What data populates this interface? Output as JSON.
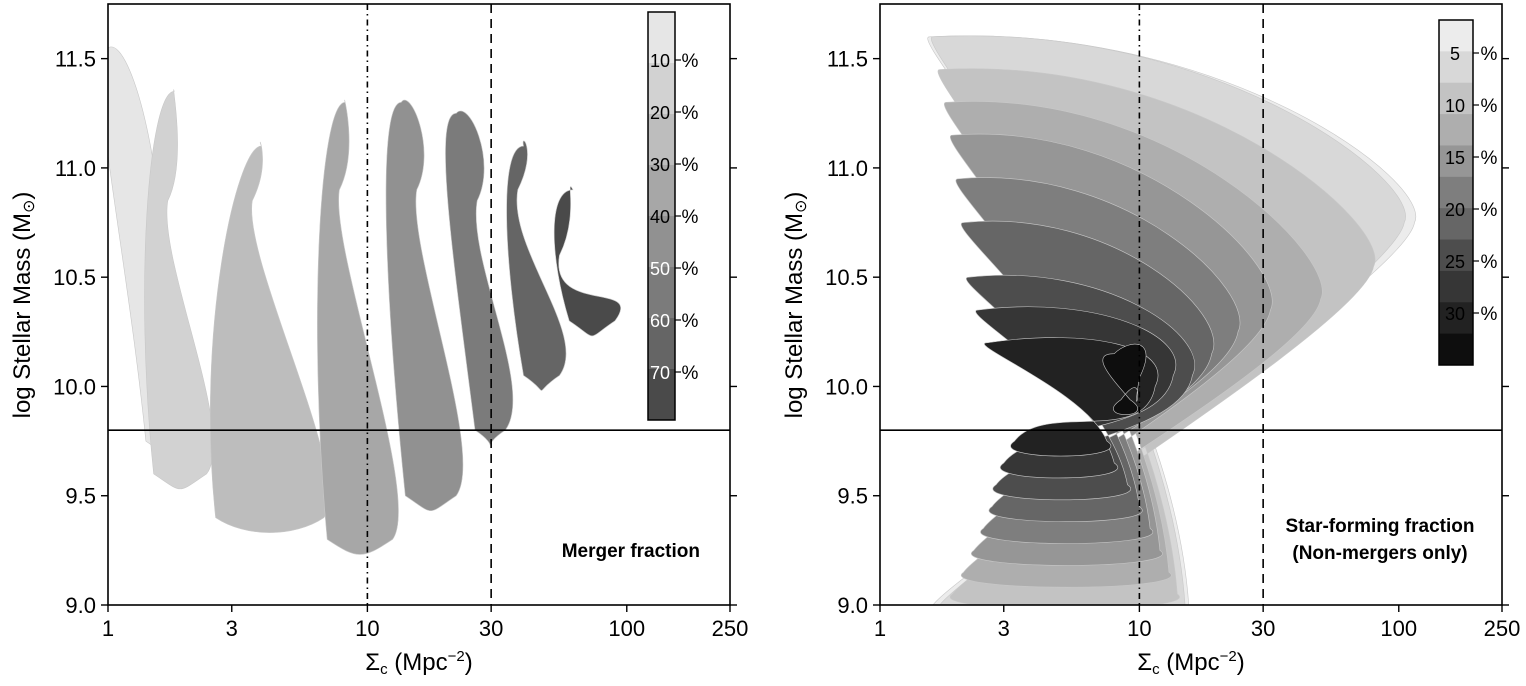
{
  "chart_data": [
    {
      "type": "heatmap",
      "subtype": "filled-contour",
      "annotation": "Merger fraction",
      "xlabel_symbol": "Σ",
      "xlabel_sub": "c",
      "xlabel_unit_open": " (Mpc",
      "xlabel_unit_sup": "−2",
      "xlabel_unit_close": ")",
      "ylabel_main": "log Stellar Mass (M",
      "ylabel_sun": "⊙",
      "ylabel_close": ")",
      "xscale": "log",
      "xlim": [
        1,
        250
      ],
      "ylim": [
        9.0,
        11.75
      ],
      "xticks": [
        1,
        3,
        10,
        30,
        100,
        250
      ],
      "xtick_labels": [
        "1",
        "3",
        "10",
        "30",
        "100",
        "250"
      ],
      "yticks": [
        9.0,
        9.5,
        10.0,
        10.5,
        11.0,
        11.5
      ],
      "ytick_labels": [
        "9.0",
        "9.5",
        "10.0",
        "10.5",
        "11.0",
        "11.5"
      ],
      "reference_lines": [
        {
          "orientation": "vertical",
          "x": 10,
          "style": "dash-dot"
        },
        {
          "orientation": "vertical",
          "x": 30,
          "style": "dashed"
        },
        {
          "orientation": "horizontal",
          "y": 9.8,
          "style": "solid"
        }
      ],
      "colorbar": {
        "levels": [
          10,
          20,
          30,
          40,
          50,
          60,
          70
        ],
        "labels": [
          "10",
          "20",
          "30",
          "40",
          "50",
          "60",
          "70"
        ],
        "unit": "%",
        "colors": [
          "#e6e6e6",
          "#d2d2d2",
          "#bdbdbd",
          "#a7a7a7",
          "#919191",
          "#7b7b7b",
          "#656565",
          "#4a4a4a"
        ]
      },
      "contour_levels": [
        {
          "level": 10,
          "color": "#e6e6e6",
          "blobs": [
            [
              9.75,
              1.8,
              1.0,
              11.55,
              10.55,
              1.5,
              9.75,
              1.4
            ]
          ]
        },
        {
          "level": 20,
          "color": "#d2d2d2",
          "blobs": [
            [
              9.6,
              2.4,
              1.8,
              11.35,
              10.85,
              1.7,
              9.6,
              1.5
            ]
          ]
        },
        {
          "level": 30,
          "color": "#bdbdbd",
          "blobs": [
            [
              9.4,
              6.8,
              3.9,
              11.1,
              10.85,
              3.6,
              9.4,
              2.6
            ]
          ]
        },
        {
          "level": 40,
          "color": "#a7a7a7",
          "blobs": [
            [
              9.3,
              12.5,
              8.2,
              11.3,
              10.9,
              7.8,
              9.3,
              7.0
            ]
          ]
        },
        {
          "level": 50,
          "color": "#919191",
          "blobs": [
            [
              9.5,
              22.0,
              13.5,
              11.3,
              10.9,
              15.5,
              9.5,
              14.0
            ]
          ]
        },
        {
          "level": 60,
          "color": "#7b7b7b",
          "blobs": [
            [
              9.8,
              34.0,
              22.0,
              11.25,
              10.85,
              26.5,
              9.8,
              26.0
            ]
          ]
        },
        {
          "level": 70,
          "color": "#656565",
          "blobs": [
            [
              10.05,
              55.0,
              40.0,
              11.1,
              10.9,
              38.0,
              10.05,
              40.0
            ]
          ]
        },
        {
          "level": 80,
          "color": "#4a4a4a",
          "blobs": [
            [
              10.3,
              90.0,
              62.0,
              10.9,
              10.6,
              55.0,
              10.3,
              60.0
            ]
          ]
        }
      ]
    },
    {
      "type": "heatmap",
      "subtype": "filled-contour",
      "annotation_line1": "Star-forming fraction",
      "annotation_line2": "(Non-mergers only)",
      "xlabel_symbol": "Σ",
      "xlabel_sub": "c",
      "xlabel_unit_open": " (Mpc",
      "xlabel_unit_sup": "−2",
      "xlabel_unit_close": ")",
      "ylabel_main": "log Stellar Mass (M",
      "ylabel_sun": "⊙",
      "ylabel_close": ")",
      "xscale": "log",
      "xlim": [
        1,
        250
      ],
      "ylim": [
        9.0,
        11.75
      ],
      "xticks": [
        1,
        3,
        10,
        30,
        100,
        250
      ],
      "xtick_labels": [
        "1",
        "3",
        "10",
        "30",
        "100",
        "250"
      ],
      "yticks": [
        9.0,
        9.5,
        10.0,
        10.5,
        11.0,
        11.5
      ],
      "ytick_labels": [
        "9.0",
        "9.5",
        "10.0",
        "10.5",
        "11.0",
        "11.5"
      ],
      "reference_lines": [
        {
          "orientation": "vertical",
          "x": 10,
          "style": "dash-dot"
        },
        {
          "orientation": "vertical",
          "x": 30,
          "style": "dashed"
        },
        {
          "orientation": "horizontal",
          "y": 9.8,
          "style": "solid"
        }
      ],
      "colorbar": {
        "levels": [
          5,
          10,
          15,
          20,
          25,
          30
        ],
        "labels": [
          "5",
          "10",
          "15",
          "20",
          "25",
          "30"
        ],
        "unit": "%",
        "colors": [
          "#ececec",
          "#d8d8d8",
          "#c3c3c3",
          "#aeaeae",
          "#969696",
          "#7e7e7e",
          "#666666",
          "#4d4d4d",
          "#363636",
          "#222222",
          "#0e0e0e"
        ]
      },
      "contour_levels": [
        {
          "level": 2.5,
          "color": "#ececec",
          "blobs": [
            [
              9.0,
              1.6,
              1.55,
              11.6,
              10.75,
              115.0,
              9.0,
              15.5
            ]
          ]
        },
        {
          "level": 5,
          "color": "#d8d8d8",
          "blobs": [
            [
              9.0,
              1.7,
              1.6,
              11.6,
              10.75,
              105.0,
              9.0,
              15.0
            ]
          ]
        },
        {
          "level": 7.5,
          "color": "#c3c3c3",
          "blobs": [
            [
              9.05,
              1.9,
              1.7,
              11.45,
              10.55,
              80.0,
              9.05,
              14.0
            ]
          ]
        },
        {
          "level": 10,
          "color": "#aeaeae",
          "blobs": [
            [
              9.15,
              2.1,
              1.8,
              11.3,
              10.4,
              50.0,
              9.15,
              13.0
            ]
          ]
        },
        {
          "level": 12.5,
          "color": "#969696",
          "blobs": [
            [
              9.25,
              2.3,
              1.9,
              11.15,
              10.35,
              32.0,
              9.25,
              12.0
            ]
          ]
        },
        {
          "level": 15,
          "color": "#7e7e7e",
          "blobs": [
            [
              9.35,
              2.5,
              2.0,
              10.95,
              10.25,
              24.0,
              9.35,
              11.0
            ]
          ]
        },
        {
          "level": 17.5,
          "color": "#666666",
          "blobs": [
            [
              9.45,
              2.7,
              2.1,
              10.75,
              10.15,
              19.0,
              9.45,
              10.0
            ]
          ]
        },
        {
          "level": 20,
          "color": "#4d4d4d",
          "blobs": [
            [
              9.55,
              2.8,
              2.2,
              10.5,
              10.05,
              16.0,
              9.55,
              9.0
            ]
          ]
        },
        {
          "level": 22.5,
          "color": "#363636",
          "blobs": [
            [
              9.65,
              3.0,
              2.4,
              10.35,
              10.05,
              13.5,
              9.65,
              8.0
            ]
          ]
        },
        {
          "level": 25,
          "color": "#222222",
          "blobs": [
            [
              9.75,
              3.3,
              2.6,
              10.2,
              10.0,
              11.5,
              9.75,
              7.5
            ]
          ]
        },
        {
          "level": 30,
          "color": "#0e0e0e",
          "blobs": [
            [
              9.94,
              8.5,
              8.0,
              10.15,
              10.04,
              10.0,
              9.94,
              9.2
            ]
          ]
        }
      ]
    }
  ]
}
